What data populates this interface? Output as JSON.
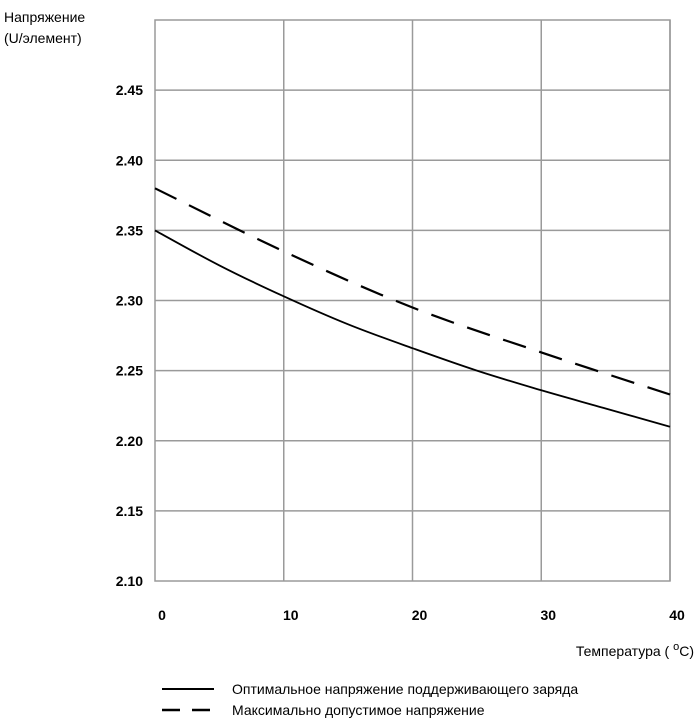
{
  "chart_data": {
    "type": "line",
    "title": "",
    "ylabel_line1": "Напряжение",
    "ylabel_line2": "(U/элемент)",
    "xlabel_prefix": "Температура ( ",
    "xlabel_sup": "o",
    "xlabel_suffix": "C)",
    "xlim": [
      0,
      40
    ],
    "ylim": [
      2.1,
      2.5
    ],
    "x_ticks": [
      "0",
      "10",
      "20",
      "30",
      "40"
    ],
    "y_ticks": [
      "2.10",
      "2.15",
      "2.20",
      "2.25",
      "2.30",
      "2.35",
      "2.40",
      "2.45"
    ],
    "grid": true,
    "legend_position": "bottom",
    "series": [
      {
        "name": "Оптимальное напряжение поддерживающего заряда",
        "style": "solid",
        "color": "#000000",
        "x": [
          0,
          5,
          10,
          15,
          20,
          25,
          30,
          35,
          40
        ],
        "y": [
          2.35,
          2.325,
          2.303,
          2.283,
          2.266,
          2.25,
          2.236,
          2.223,
          2.21
        ]
      },
      {
        "name": "Максимально допустимое напряжение",
        "style": "dashed",
        "color": "#000000",
        "x": [
          0,
          10,
          20,
          30,
          40
        ],
        "y": [
          2.38,
          2.335,
          2.295,
          2.263,
          2.233
        ]
      }
    ]
  }
}
